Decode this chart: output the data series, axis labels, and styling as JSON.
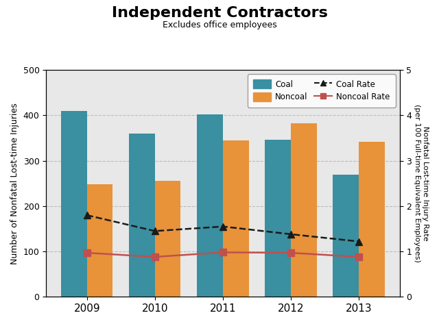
{
  "years": [
    2009,
    2010,
    2011,
    2012,
    2013
  ],
  "coal_bars": [
    410,
    360,
    403,
    347,
    270
  ],
  "noncoal_bars": [
    248,
    255,
    345,
    383,
    342
  ],
  "coal_rate": [
    1.8,
    1.45,
    1.55,
    1.38,
    1.22
  ],
  "noncoal_rate": [
    0.97,
    0.88,
    0.98,
    0.97,
    0.88
  ],
  "coal_color": "#3a8fa0",
  "noncoal_color": "#e8923a",
  "coal_rate_color": "#1a1a1a",
  "noncoal_rate_color": "#c0504d",
  "title": "Independent Contractors",
  "subtitle": "Excludes office employees",
  "ylabel_left": "Number of Nonfatal Lost-time Injuries",
  "ylabel_right": "Nonfatal Lost-time Injury Rate\n(per 100 Full-time Equivalent Employees)",
  "ylim_left": [
    0,
    500
  ],
  "ylim_right": [
    0.0,
    5.0
  ],
  "yticks_left": [
    0,
    100,
    200,
    300,
    400,
    500
  ],
  "yticks_right": [
    0.0,
    1.0,
    2.0,
    3.0,
    4.0,
    5.0
  ],
  "background_color": "#e8e8e8",
  "bar_width": 0.38
}
